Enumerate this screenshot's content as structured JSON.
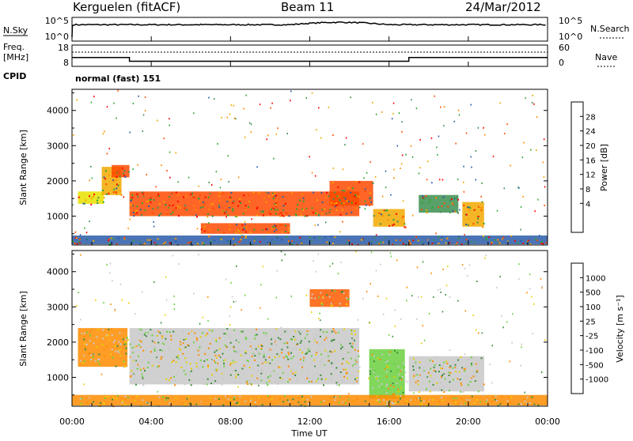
{
  "header": {
    "station": "Kerguelen (fitACF)",
    "beam": "Beam 11",
    "date": "24/Mar/2012"
  },
  "nsky_panel": {
    "left_label": "N.Sky",
    "right_label": "N.Search",
    "left_ticks": [
      "10^5",
      "10^0"
    ],
    "right_ticks": [
      "10^5",
      "10^0"
    ]
  },
  "freq_panel": {
    "left_label_1": "Freq.",
    "left_label_2": "[MHz]",
    "right_label": "Nave",
    "left_ticks": [
      "18",
      "8"
    ],
    "right_ticks": [
      "60",
      "0"
    ],
    "cpid_label": "CPID",
    "cpid_value": "normal (fast) 151"
  },
  "power_panel": {
    "ylabel": "Slant Range [km]",
    "y_ticks": [
      "4000",
      "3000",
      "2000",
      "1000"
    ],
    "colorbar_label": "Power [dB]",
    "colorbar_ticks": [
      "28",
      "24",
      "20",
      "16",
      "12",
      "8",
      "4"
    ],
    "colorbar_colors": [
      "#ff0000",
      "#ff4a00",
      "#ff8c00",
      "#f2a900",
      "#e8e000",
      "#2ea82e",
      "#3c8f50",
      "#2a5ca8",
      "#1010e8"
    ]
  },
  "velocity_panel": {
    "ylabel": "Slant Range [km]",
    "y_ticks": [
      "4000",
      "3000",
      "2000",
      "1000"
    ],
    "colorbar_label": "Velocity [m s⁻¹]",
    "colorbar_ticks": [
      "1000",
      "500",
      "100",
      "25",
      "-25",
      "-100",
      "-500",
      "-1000"
    ],
    "colorbar_colors": [
      "#1a3cc8",
      "#2f6fbf",
      "#3a8a3a",
      "#6ad040",
      "#c8c8c8",
      "#e8d000",
      "#ff8c00",
      "#ff5a00",
      "#ff0000"
    ]
  },
  "x_axis": {
    "ticks": [
      "00:00",
      "04:00",
      "08:00",
      "12:00",
      "16:00",
      "20:00",
      "00:00"
    ],
    "label": "Time UT"
  },
  "chart_data": {
    "type": "heatmap",
    "title": "Kerguelen (fitACF)  Beam 11  24/Mar/2012",
    "xlabel": "Time UT",
    "ylabel": "Slant Range [km]",
    "x_range_hours": [
      0,
      24
    ],
    "y_range_km": [
      180,
      4600
    ],
    "frequency_step": {
      "x_hours": [
        0,
        2.9,
        2.9,
        17,
        17,
        24
      ],
      "mhz": [
        12.2,
        12.2,
        10.4,
        10.4,
        12.2,
        12.2
      ]
    },
    "power_regions": [
      {
        "x0": 0.3,
        "x1": 1.6,
        "y0": 1350,
        "y1": 1700,
        "db": 14
      },
      {
        "x0": 1.5,
        "x1": 2.5,
        "y0": 1600,
        "y1": 2400,
        "db": 16
      },
      {
        "x0": 2.0,
        "x1": 2.9,
        "y0": 2100,
        "y1": 2450,
        "db": 22
      },
      {
        "x0": 2.9,
        "x1": 14.5,
        "y0": 1000,
        "y1": 1700,
        "db": 24
      },
      {
        "x0": 6.5,
        "x1": 11.0,
        "y0": 500,
        "y1": 800,
        "db": 22
      },
      {
        "x0": 13.0,
        "x1": 15.2,
        "y0": 1300,
        "y1": 2000,
        "db": 22
      },
      {
        "x0": 15.2,
        "x1": 16.8,
        "y0": 700,
        "y1": 1200,
        "db": 18
      },
      {
        "x0": 17.5,
        "x1": 19.5,
        "y0": 1100,
        "y1": 1600,
        "db": 8
      },
      {
        "x0": 19.7,
        "x1": 20.8,
        "y0": 700,
        "y1": 1400,
        "db": 16
      },
      {
        "x0": 0.0,
        "x1": 24.0,
        "y0": 200,
        "y1": 450,
        "db": 6
      }
    ],
    "velocity_regions": [
      {
        "x0": 0.3,
        "x1": 2.8,
        "y0": 1300,
        "y1": 2400,
        "ms": -100
      },
      {
        "x0": 2.9,
        "x1": 14.5,
        "y0": 800,
        "y1": 2400,
        "ms": 0
      },
      {
        "x0": 15.0,
        "x1": 16.8,
        "y0": 400,
        "y1": 1800,
        "ms": 50
      },
      {
        "x0": 17.0,
        "x1": 20.8,
        "y0": 600,
        "y1": 1600,
        "ms": 0
      },
      {
        "x0": 12.0,
        "x1": 14.0,
        "y0": 3000,
        "y1": 3500,
        "ms": -500
      },
      {
        "x0": 0.0,
        "x1": 24.0,
        "y0": 200,
        "y1": 500,
        "ms": -100
      }
    ]
  }
}
